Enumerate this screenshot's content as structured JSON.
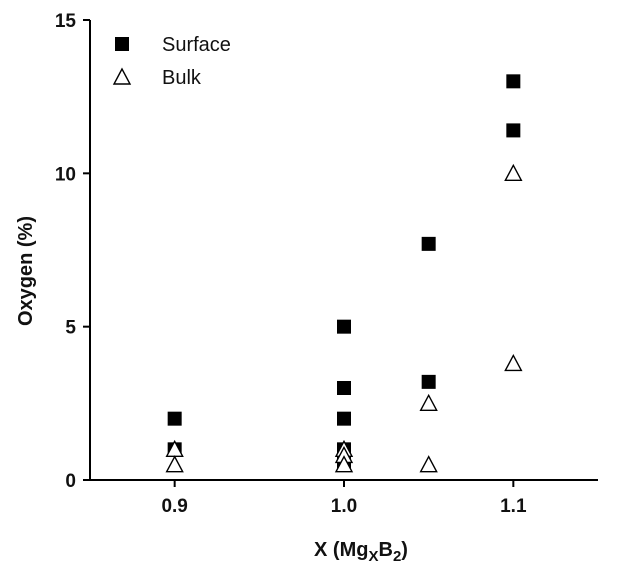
{
  "chart_data": {
    "type": "scatter",
    "xlabel": {
      "main": "X (Mg",
      "sub1": "X",
      "mid": "B",
      "sub2": "2",
      "end": ")"
    },
    "ylabel": "Oxygen (%)",
    "xlim": [
      0.85,
      1.15
    ],
    "ylim": [
      0,
      15
    ],
    "xticks": [
      0.9,
      1.0,
      1.1
    ],
    "xtick_labels": [
      "0.9",
      "1.0",
      "1.1"
    ],
    "yticks": [
      0,
      5,
      10,
      15
    ],
    "ytick_labels": [
      "0",
      "5",
      "10",
      "15"
    ],
    "grid": false,
    "legend_position": "top-left",
    "series": [
      {
        "name": "Surface",
        "marker": "filled-square",
        "color": "#000000",
        "points": [
          [
            0.9,
            2.0
          ],
          [
            0.9,
            1.0
          ],
          [
            1.0,
            5.0
          ],
          [
            1.0,
            3.0
          ],
          [
            1.0,
            2.0
          ],
          [
            1.0,
            1.0
          ],
          [
            1.0,
            0.6
          ],
          [
            1.05,
            7.7
          ],
          [
            1.05,
            3.2
          ],
          [
            1.1,
            13.0
          ],
          [
            1.1,
            11.4
          ]
        ]
      },
      {
        "name": "Bulk",
        "marker": "open-triangle",
        "color": "#000000",
        "points": [
          [
            0.9,
            1.0
          ],
          [
            0.9,
            0.5
          ],
          [
            1.0,
            1.0
          ],
          [
            1.0,
            0.8
          ],
          [
            1.0,
            0.5
          ],
          [
            1.05,
            2.5
          ],
          [
            1.05,
            0.5
          ],
          [
            1.1,
            10.0
          ],
          [
            1.1,
            3.8
          ]
        ]
      }
    ]
  }
}
